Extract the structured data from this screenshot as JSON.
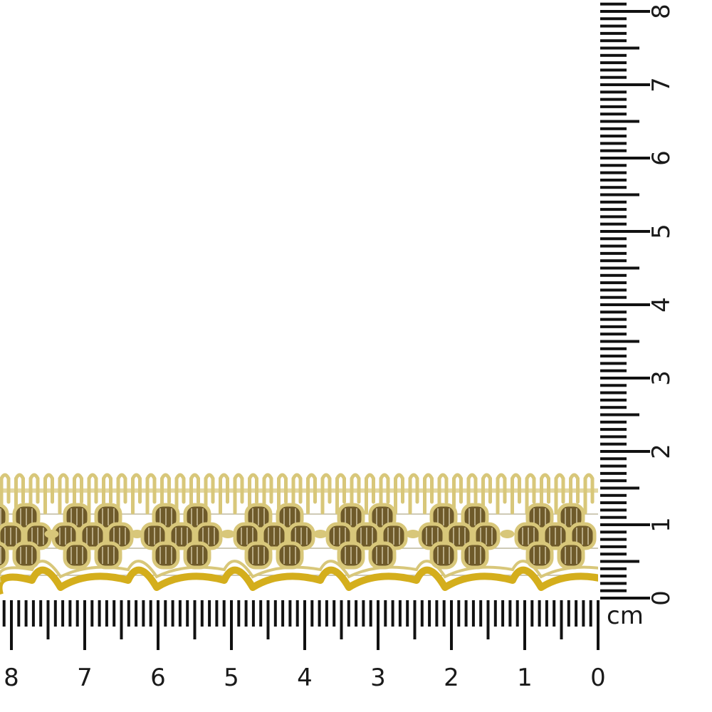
{
  "ruler": {
    "unit": "cm",
    "horizontal_labels": [
      "0",
      "1",
      "2",
      "3",
      "4",
      "5",
      "6",
      "7",
      "8"
    ],
    "vertical_labels": [
      "0",
      "1",
      "2",
      "3",
      "4",
      "5",
      "6",
      "7",
      "8"
    ]
  },
  "product": {
    "type": "gold metallic lace trim",
    "colors": {
      "gold_light": "#d8c77a",
      "gold_bright": "#d4ae1c",
      "motif_dark": "#6e5a2a",
      "thread": "#bdb89e"
    }
  }
}
